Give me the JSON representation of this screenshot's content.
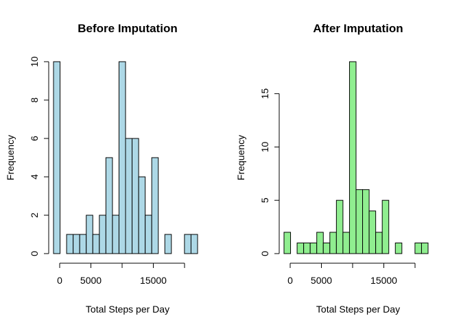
{
  "chart_data": [
    {
      "type": "bar",
      "title": "Before Imputation",
      "xlabel": "Total Steps per Day",
      "ylabel": "Frequency",
      "bar_color": "#ADD8E6",
      "bin_width": 1000,
      "xlim": [
        0,
        22000
      ],
      "ylim": [
        0,
        10
      ],
      "x_ticks": [
        0,
        5000,
        10000,
        15000,
        20000
      ],
      "x_tick_labels": [
        "0",
        "5000",
        "",
        "15000",
        ""
      ],
      "y_ticks": [
        0,
        2,
        4,
        6,
        8,
        10
      ],
      "y_tick_labels": [
        "0",
        "2",
        "4",
        "6",
        "8",
        "10"
      ],
      "bins": [
        {
          "x": 0,
          "count": 10
        },
        {
          "x": 1000,
          "count": 0
        },
        {
          "x": 2000,
          "count": 1
        },
        {
          "x": 3000,
          "count": 1
        },
        {
          "x": 4000,
          "count": 1
        },
        {
          "x": 5000,
          "count": 2
        },
        {
          "x": 6000,
          "count": 1
        },
        {
          "x": 7000,
          "count": 2
        },
        {
          "x": 8000,
          "count": 5
        },
        {
          "x": 9000,
          "count": 2
        },
        {
          "x": 10000,
          "count": 10
        },
        {
          "x": 11000,
          "count": 6
        },
        {
          "x": 12000,
          "count": 6
        },
        {
          "x": 13000,
          "count": 4
        },
        {
          "x": 14000,
          "count": 2
        },
        {
          "x": 15000,
          "count": 5
        },
        {
          "x": 16000,
          "count": 0
        },
        {
          "x": 17000,
          "count": 1
        },
        {
          "x": 18000,
          "count": 0
        },
        {
          "x": 19000,
          "count": 0
        },
        {
          "x": 20000,
          "count": 1
        },
        {
          "x": 21000,
          "count": 1
        }
      ]
    },
    {
      "type": "bar",
      "title": "After Imputation",
      "xlabel": "Total Steps per Day",
      "ylabel": "Frequency",
      "bar_color": "#90EE90",
      "bin_width": 1000,
      "xlim": [
        0,
        22000
      ],
      "ylim": [
        0,
        18
      ],
      "x_ticks": [
        0,
        5000,
        10000,
        15000,
        20000
      ],
      "x_tick_labels": [
        "0",
        "5000",
        "",
        "15000",
        ""
      ],
      "y_ticks": [
        0,
        5,
        10,
        15
      ],
      "y_tick_labels": [
        "0",
        "5",
        "10",
        "15"
      ],
      "bins": [
        {
          "x": 0,
          "count": 2
        },
        {
          "x": 1000,
          "count": 0
        },
        {
          "x": 2000,
          "count": 1
        },
        {
          "x": 3000,
          "count": 1
        },
        {
          "x": 4000,
          "count": 1
        },
        {
          "x": 5000,
          "count": 2
        },
        {
          "x": 6000,
          "count": 1
        },
        {
          "x": 7000,
          "count": 2
        },
        {
          "x": 8000,
          "count": 5
        },
        {
          "x": 9000,
          "count": 2
        },
        {
          "x": 10000,
          "count": 18
        },
        {
          "x": 11000,
          "count": 6
        },
        {
          "x": 12000,
          "count": 6
        },
        {
          "x": 13000,
          "count": 4
        },
        {
          "x": 14000,
          "count": 2
        },
        {
          "x": 15000,
          "count": 5
        },
        {
          "x": 16000,
          "count": 0
        },
        {
          "x": 17000,
          "count": 1
        },
        {
          "x": 18000,
          "count": 0
        },
        {
          "x": 19000,
          "count": 0
        },
        {
          "x": 20000,
          "count": 1
        },
        {
          "x": 21000,
          "count": 1
        }
      ]
    }
  ]
}
